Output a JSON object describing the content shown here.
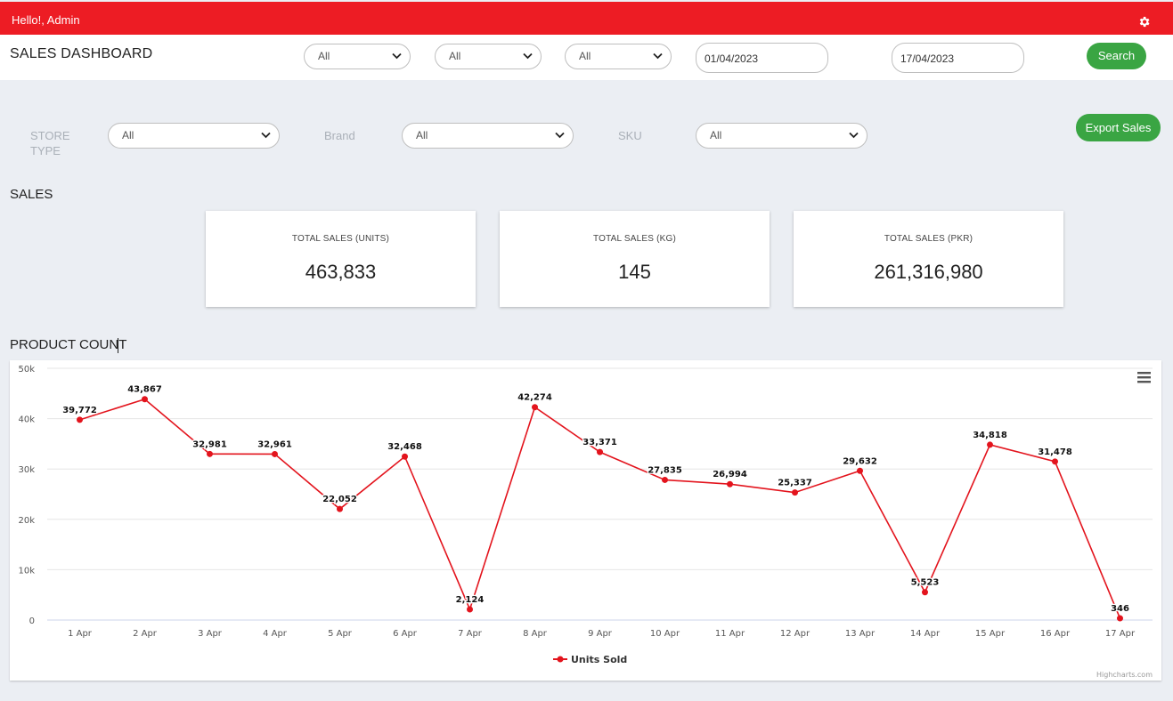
{
  "topbar": {
    "greeting": "Hello!, Admin",
    "settings_icon": "gear-icon"
  },
  "header": {
    "title": "SALES DASHBOARD",
    "filters": [
      "All",
      "All",
      "All"
    ],
    "date_from": "01/04/2023",
    "date_to": "17/04/2023",
    "search_label": "Search"
  },
  "filters": {
    "store_type_label": "STORE TYPE",
    "store_type_value": "All",
    "brand_label": "Brand",
    "brand_value": "All",
    "sku_label": "SKU",
    "sku_value": "All",
    "export_label": "Export Sales"
  },
  "sales": {
    "section_title": "SALES",
    "cards": [
      {
        "title": "TOTAL SALES (UNITS)",
        "value": "463,833"
      },
      {
        "title": "TOTAL SALES (KG)",
        "value": "145"
      },
      {
        "title": "TOTAL SALES (PKR)",
        "value": "261,316,980"
      }
    ]
  },
  "product_count": {
    "section_title": "PRODUCT COUNT"
  },
  "colors": {
    "brand_red": "#ed1c24",
    "green": "#3aa543",
    "series": "#e3141d"
  },
  "chart_data": {
    "type": "line",
    "title": "",
    "xlabel": "",
    "ylabel": "",
    "categories": [
      "1 Apr",
      "2 Apr",
      "3 Apr",
      "4 Apr",
      "5 Apr",
      "6 Apr",
      "7 Apr",
      "8 Apr",
      "9 Apr",
      "10 Apr",
      "11 Apr",
      "12 Apr",
      "13 Apr",
      "14 Apr",
      "15 Apr",
      "16 Apr",
      "17 Apr"
    ],
    "series": [
      {
        "name": "Units Sold",
        "values": [
          39772,
          43867,
          32981,
          32961,
          22052,
          32468,
          2124,
          42274,
          33371,
          27835,
          26994,
          25337,
          29632,
          5523,
          34818,
          31478,
          346
        ]
      }
    ],
    "data_labels": [
      "39,772",
      "43,867",
      "32,981",
      "32,961",
      "22,052",
      "32,468",
      "2,124",
      "42,274",
      "33,371",
      "27,835",
      "26,994",
      "25,337",
      "29,632",
      "5,523",
      "34,818",
      "31,478",
      "346"
    ],
    "y_ticks": [
      0,
      10000,
      20000,
      30000,
      40000,
      50000
    ],
    "y_tick_labels": [
      "0",
      "10k",
      "20k",
      "30k",
      "40k",
      "50k"
    ],
    "ylim": [
      0,
      50000
    ],
    "legend": "bottom-center",
    "credits": "Highcharts.com",
    "menu_icon": "hamburger-menu-icon"
  }
}
